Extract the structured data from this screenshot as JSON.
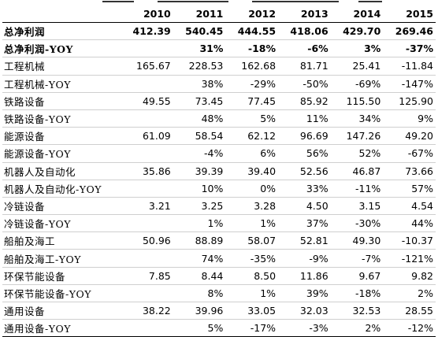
{
  "table": {
    "columns": [
      "",
      "2010",
      "2011",
      "2012",
      "2013",
      "2014",
      "2015"
    ],
    "rows": [
      {
        "label": "总净利润",
        "values": [
          "412.39",
          "540.45",
          "444.55",
          "418.06",
          "429.70",
          "269.46"
        ],
        "bold": true
      },
      {
        "label": "总净利润-YOY",
        "values": [
          "",
          "31%",
          "-18%",
          "-6%",
          "3%",
          "-37%"
        ],
        "bold": true
      },
      {
        "label": "工程机械",
        "values": [
          "165.67",
          "228.53",
          "162.68",
          "81.71",
          "25.41",
          "-11.84"
        ]
      },
      {
        "label": "工程机械-YOY",
        "values": [
          "",
          "38%",
          "-29%",
          "-50%",
          "-69%",
          "-147%"
        ]
      },
      {
        "label": "铁路设备",
        "values": [
          "49.55",
          "73.45",
          "77.45",
          "85.92",
          "115.50",
          "125.90"
        ]
      },
      {
        "label": "铁路设备-YOY",
        "values": [
          "",
          "48%",
          "5%",
          "11%",
          "34%",
          "9%"
        ]
      },
      {
        "label": "能源设备",
        "values": [
          "61.09",
          "58.54",
          "62.12",
          "96.69",
          "147.26",
          "49.20"
        ]
      },
      {
        "label": "能源设备-YOY",
        "values": [
          "",
          "-4%",
          "6%",
          "56%",
          "52%",
          "-67%"
        ]
      },
      {
        "label": "机器人及自动化",
        "values": [
          "35.86",
          "39.39",
          "39.40",
          "52.56",
          "46.87",
          "73.66"
        ]
      },
      {
        "label": "机器人及自动化-YOY",
        "values": [
          "",
          "10%",
          "0%",
          "33%",
          "-11%",
          "57%"
        ]
      },
      {
        "label": "冷链设备",
        "values": [
          "3.21",
          "3.25",
          "3.28",
          "4.50",
          "3.15",
          "4.54"
        ]
      },
      {
        "label": "冷链设备-YOY",
        "values": [
          "",
          "1%",
          "1%",
          "37%",
          "-30%",
          "44%"
        ]
      },
      {
        "label": "船舶及海工",
        "values": [
          "50.96",
          "88.89",
          "58.07",
          "52.81",
          "49.30",
          "-10.37"
        ]
      },
      {
        "label": "船舶及海工-YOY",
        "values": [
          "",
          "74%",
          "-35%",
          "-9%",
          "-7%",
          "-121%"
        ]
      },
      {
        "label": "环保节能设备",
        "values": [
          "7.85",
          "8.44",
          "8.50",
          "11.86",
          "9.67",
          "9.82"
        ]
      },
      {
        "label": "环保节能设备-YOY",
        "values": [
          "",
          "8%",
          "1%",
          "39%",
          "-18%",
          "2%"
        ]
      },
      {
        "label": "通用设备",
        "values": [
          "38.22",
          "39.96",
          "33.05",
          "32.03",
          "32.53",
          "28.55"
        ]
      },
      {
        "label": "通用设备-YOY",
        "values": [
          "",
          "5%",
          "-17%",
          "-3%",
          "2%",
          "-12%"
        ]
      }
    ]
  }
}
